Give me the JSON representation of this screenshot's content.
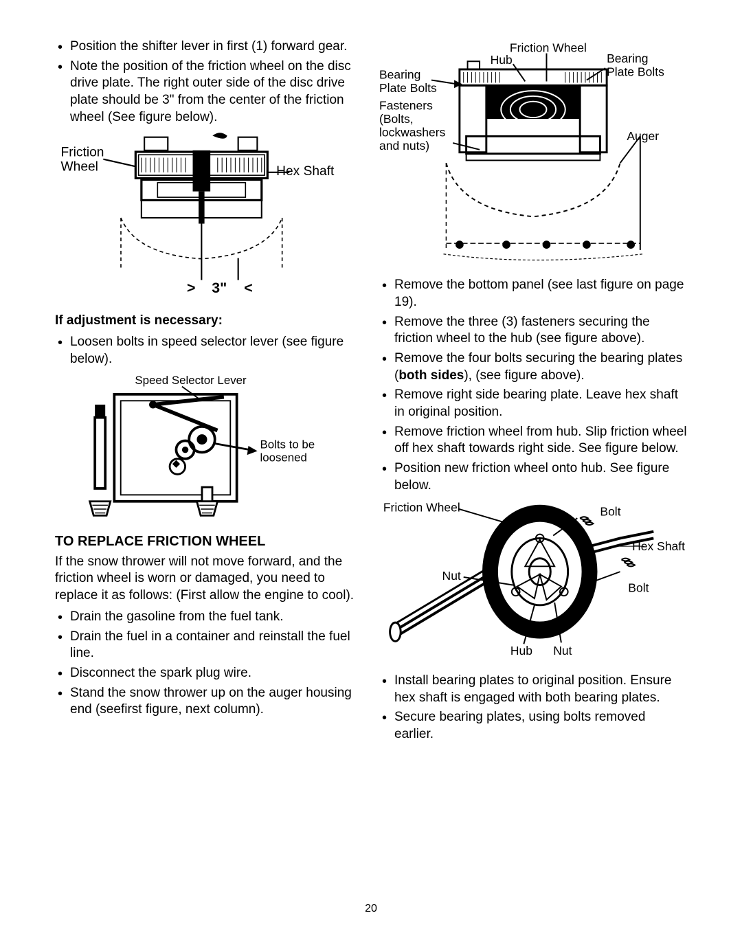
{
  "page_number": "20",
  "left": {
    "bullets_top": [
      "Position the shifter lever in first (1) forward gear.",
      "Note the position of the friction wheel on the disc drive plate. The right outer side of the disc drive plate should be 3\" from the center of the friction wheel (See figure below)."
    ],
    "fig1": {
      "label_friction": "Friction",
      "label_wheel": "Wheel",
      "label_hex_shaft": "Hex Shaft",
      "dim_label": "3\"",
      "dim_left": ">",
      "dim_right": "<",
      "colors": {
        "stroke": "#000000",
        "bg": "#ffffff"
      }
    },
    "adjust_heading": "If adjustment is necessary:",
    "adjust_bullet": "Loosen bolts in speed selector lever (see figure below).",
    "fig2": {
      "label_lever": "Speed Selector Lever",
      "label_bolts_line1": "Bolts to be",
      "label_bolts_line2": "loosened",
      "colors": {
        "stroke": "#000000",
        "bg": "#ffffff"
      }
    },
    "section_heading": "TO REPLACE FRICTION WHEEL",
    "section_para": "If the snow thrower will not move forward, and the friction wheel is worn or damaged, you need to replace it as follows: (First allow the engine to cool).",
    "section_bullets": [
      "Drain the gasoline from the fuel tank.",
      "Drain the fuel in a container and reinstall the fuel line.",
      "Disconnect the spark plug wire.",
      "Stand the snow thrower up on the auger housing end (seefirst figure, next column)."
    ]
  },
  "right": {
    "fig3": {
      "label_friction_wheel": "Friction Wheel",
      "label_hub": "Hub",
      "label_bearing_plate_bolts_r1": "Bearing",
      "label_bearing_plate_bolts_r2": "Plate Bolts",
      "label_bearing_l": "Bearing",
      "label_plate_bolts_l": "Plate Bolts",
      "label_fasteners": "Fasteners",
      "label_bolts": "(Bolts,",
      "label_lockwashers": "lockwashers",
      "label_and_nuts": "and nuts)",
      "label_auger": "Auger",
      "colors": {
        "stroke": "#000000",
        "bg": "#ffffff"
      }
    },
    "bullets_mid": [
      "Remove the bottom panel (see last figure on page 19).",
      "Remove the three (3) fasteners securing the friction wheel to the hub (see figure above).",
      "Remove the four bolts securing the bearing plates (<b>both sides</b>), (see  figure above).",
      "Remove right side bearing plate. Leave hex shaft in original position.",
      "Remove friction wheel from hub. Slip friction wheel off hex shaft towards right side. See figure below.",
      "Position new friction wheel onto hub. See figure below."
    ],
    "fig4": {
      "label_friction_wheel": "Friction Wheel",
      "label_bolt": "Bolt",
      "label_hex_shaft": "Hex Shaft",
      "label_nut": "Nut",
      "label_hub": "Hub",
      "colors": {
        "stroke": "#000000",
        "bg": "#ffffff"
      }
    },
    "bullets_bottom": [
      "Install bearing plates to original position. Ensure hex shaft is engaged with both bearing plates.",
      "Secure bearing plates, using bolts removed earlier."
    ]
  }
}
